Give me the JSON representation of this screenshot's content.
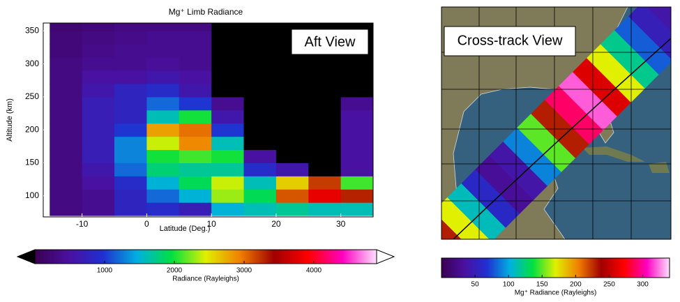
{
  "chart_data": [
    {
      "type": "heatmap",
      "title": "Mg⁺ Limb Radiance",
      "annotation": "Aft View",
      "x_label": "Latitude (Deg.)",
      "y_label": "Altitude (km)",
      "x": [
        -12.5,
        -7.5,
        -2.5,
        2.5,
        7.5,
        12.5,
        17.5,
        22.5,
        27.5,
        32.5
      ],
      "y": [
        80,
        100,
        120,
        140,
        160,
        180,
        200,
        220,
        240,
        260,
        280,
        300,
        320,
        340,
        360
      ],
      "values": [
        [
          300,
          400,
          800,
          900,
          700,
          1500,
          1600,
          1700,
          1600,
          1600
        ],
        [
          300,
          400,
          800,
          1200,
          1500,
          2300,
          1900,
          3100,
          3800,
          3300
        ],
        [
          300,
          500,
          900,
          1500,
          1900,
          2400,
          1600,
          2600,
          3200,
          2100
        ],
        [
          300,
          600,
          1200,
          1800,
          1700,
          1700,
          900,
          600,
          null,
          500
        ],
        [
          300,
          700,
          1300,
          2000,
          2100,
          2000,
          500,
          null,
          null,
          500
        ],
        [
          300,
          700,
          1300,
          2400,
          2900,
          1600,
          null,
          null,
          null,
          500
        ],
        [
          300,
          700,
          1000,
          2800,
          3000,
          1000,
          null,
          null,
          null,
          500
        ],
        [
          300,
          700,
          800,
          1600,
          2000,
          600,
          null,
          null,
          null,
          500
        ],
        [
          300,
          700,
          800,
          1200,
          1000,
          400,
          null,
          null,
          null,
          400
        ],
        [
          300,
          600,
          800,
          900,
          600,
          null,
          null,
          null,
          null,
          null
        ],
        [
          300,
          500,
          500,
          600,
          500,
          null,
          null,
          null,
          null,
          null
        ],
        [
          300,
          400,
          400,
          450,
          400,
          null,
          null,
          null,
          null,
          null
        ],
        [
          250,
          350,
          400,
          400,
          400,
          null,
          null,
          null,
          null,
          null
        ],
        [
          250,
          300,
          350,
          400,
          400,
          null,
          null,
          null,
          null,
          null
        ],
        [
          200,
          250,
          300,
          300,
          300,
          null,
          null,
          null,
          null,
          null
        ]
      ],
      "xlim": [
        -16,
        35
      ],
      "xticks": [
        -10,
        0,
        10,
        20,
        30
      ],
      "ylim": [
        68,
        362
      ],
      "yticks": [
        100,
        150,
        200,
        250,
        300,
        350
      ],
      "missing_color": "#000000",
      "colormap": [
        "#3a0050",
        "#4a10a0",
        "#2030d0",
        "#00b0e0",
        "#00e040",
        "#e0f000",
        "#f08000",
        "#a00000",
        "#ff0000",
        "#ff00c0",
        "#ffe0ff"
      ],
      "colorbar": {
        "label": "Radiance (Rayleighs)",
        "lim": [
          0,
          4900
        ],
        "ticks": [
          1000,
          2000,
          3000,
          4000
        ]
      }
    },
    {
      "type": "swath",
      "title": "Cross-track View",
      "values": [
        230,
        170,
        110,
        60,
        30,
        40,
        90,
        150,
        230,
        290,
        320,
        260,
        170,
        120,
        80,
        50,
        40
      ],
      "colormap": [
        "#3a0050",
        "#4a10a0",
        "#2030d0",
        "#00b0e0",
        "#00e040",
        "#e0f000",
        "#f08000",
        "#a00000",
        "#ff0000",
        "#ff00c0",
        "#ffe0ff"
      ],
      "colorbar": {
        "label": "Mg⁺ Radiance (Rayleighs)",
        "lim": [
          0,
          340
        ],
        "ticks": [
          50,
          100,
          150,
          200,
          250,
          300
        ]
      }
    }
  ]
}
